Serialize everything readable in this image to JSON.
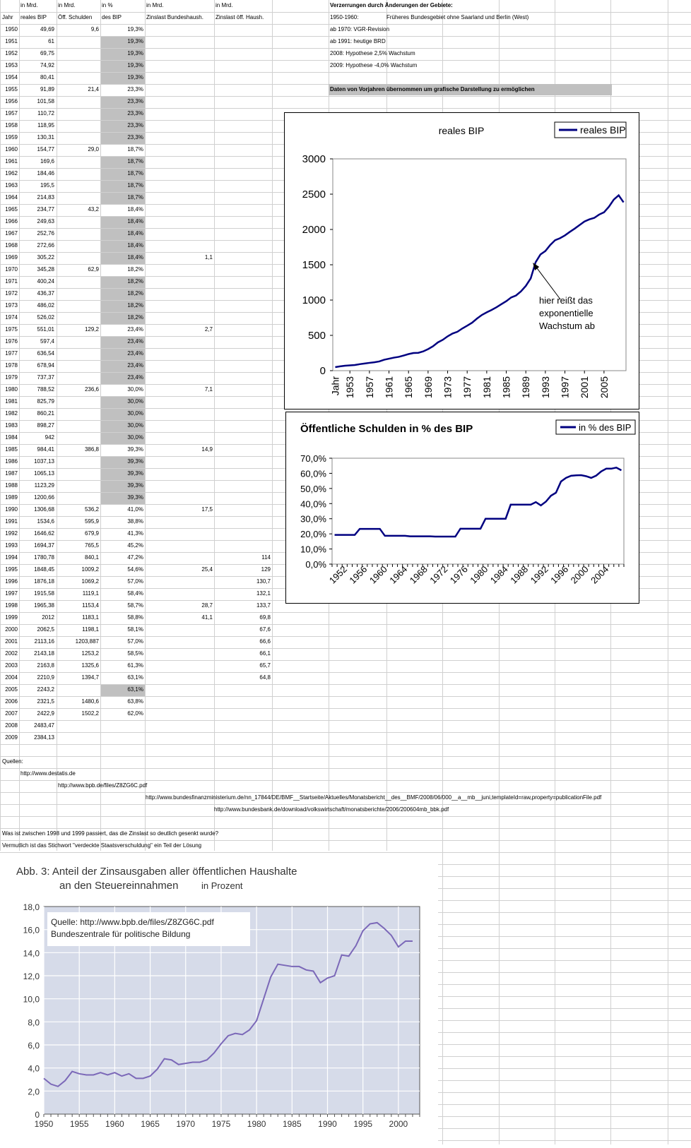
{
  "header_row1": [
    "in Mrd.",
    "in Mrd.",
    "in %",
    "in Mrd.",
    "in Mrd."
  ],
  "header_row2": [
    "Jahr",
    "reales BIP",
    "Öff. Schulden",
    "des BIP",
    "Zinslast Bundeshaush.",
    "Zinslast öff. Haush."
  ],
  "rows": [
    [
      "1950",
      "49,69",
      "9,6",
      "19,3%",
      "",
      ""
    ],
    [
      "1951",
      "61",
      "",
      "19,3%",
      "",
      ""
    ],
    [
      "1952",
      "69,75",
      "",
      "19,3%",
      "",
      ""
    ],
    [
      "1953",
      "74,92",
      "",
      "19,3%",
      "",
      ""
    ],
    [
      "1954",
      "80,41",
      "",
      "19,3%",
      "",
      ""
    ],
    [
      "1955",
      "91,89",
      "21,4",
      "23,3%",
      "",
      ""
    ],
    [
      "1956",
      "101,58",
      "",
      "23,3%",
      "",
      ""
    ],
    [
      "1957",
      "110,72",
      "",
      "23,3%",
      "",
      ""
    ],
    [
      "1958",
      "118,95",
      "",
      "23,3%",
      "",
      ""
    ],
    [
      "1959",
      "130,31",
      "",
      "23,3%",
      "",
      ""
    ],
    [
      "1960",
      "154,77",
      "29,0",
      "18,7%",
      "",
      ""
    ],
    [
      "1961",
      "169,6",
      "",
      "18,7%",
      "",
      ""
    ],
    [
      "1962",
      "184,46",
      "",
      "18,7%",
      "",
      ""
    ],
    [
      "1963",
      "195,5",
      "",
      "18,7%",
      "",
      ""
    ],
    [
      "1964",
      "214,83",
      "",
      "18,7%",
      "",
      ""
    ],
    [
      "1965",
      "234,77",
      "43,2",
      "18,4%",
      "",
      ""
    ],
    [
      "1966",
      "249,63",
      "",
      "18,4%",
      "",
      ""
    ],
    [
      "1967",
      "252,76",
      "",
      "18,4%",
      "",
      ""
    ],
    [
      "1968",
      "272,66",
      "",
      "18,4%",
      "",
      ""
    ],
    [
      "1969",
      "305,22",
      "",
      "18,4%",
      "1,1",
      ""
    ],
    [
      "1970",
      "345,28",
      "62,9",
      "18,2%",
      "",
      ""
    ],
    [
      "1971",
      "400,24",
      "",
      "18,2%",
      "",
      ""
    ],
    [
      "1972",
      "436,37",
      "",
      "18,2%",
      "",
      ""
    ],
    [
      "1973",
      "486,02",
      "",
      "18,2%",
      "",
      ""
    ],
    [
      "1974",
      "526,02",
      "",
      "18,2%",
      "",
      ""
    ],
    [
      "1975",
      "551,01",
      "129,2",
      "23,4%",
      "2,7",
      ""
    ],
    [
      "1976",
      "597,4",
      "",
      "23,4%",
      "",
      ""
    ],
    [
      "1977",
      "636,54",
      "",
      "23,4%",
      "",
      ""
    ],
    [
      "1978",
      "678,94",
      "",
      "23,4%",
      "",
      ""
    ],
    [
      "1979",
      "737,37",
      "",
      "23,4%",
      "",
      ""
    ],
    [
      "1980",
      "788,52",
      "236,6",
      "30,0%",
      "7,1",
      ""
    ],
    [
      "1981",
      "825,79",
      "",
      "30,0%",
      "",
      ""
    ],
    [
      "1982",
      "860,21",
      "",
      "30,0%",
      "",
      ""
    ],
    [
      "1983",
      "898,27",
      "",
      "30,0%",
      "",
      ""
    ],
    [
      "1984",
      "942",
      "",
      "30,0%",
      "",
      ""
    ],
    [
      "1985",
      "984,41",
      "386,8",
      "39,3%",
      "14,9",
      ""
    ],
    [
      "1986",
      "1037,13",
      "",
      "39,3%",
      "",
      ""
    ],
    [
      "1987",
      "1065,13",
      "",
      "39,3%",
      "",
      ""
    ],
    [
      "1988",
      "1123,29",
      "",
      "39,3%",
      "",
      ""
    ],
    [
      "1989",
      "1200,66",
      "",
      "39,3%",
      "",
      ""
    ],
    [
      "1990",
      "1306,68",
      "536,2",
      "41,0%",
      "17,5",
      ""
    ],
    [
      "1991",
      "1534,6",
      "595,9",
      "38,8%",
      "",
      ""
    ],
    [
      "1992",
      "1646,62",
      "679,9",
      "41,3%",
      "",
      ""
    ],
    [
      "1993",
      "1694,37",
      "765,5",
      "45,2%",
      "",
      ""
    ],
    [
      "1994",
      "1780,78",
      "840,1",
      "47,2%",
      "",
      "114"
    ],
    [
      "1995",
      "1848,45",
      "1009,2",
      "54,6%",
      "25,4",
      "129"
    ],
    [
      "1996",
      "1876,18",
      "1069,2",
      "57,0%",
      "",
      "130,7"
    ],
    [
      "1997",
      "1915,58",
      "1119,1",
      "58,4%",
      "",
      "132,1"
    ],
    [
      "1998",
      "1965,38",
      "1153,4",
      "58,7%",
      "28,7",
      "133,7"
    ],
    [
      "1999",
      "2012",
      "1183,1",
      "58,8%",
      "41,1",
      "69,8"
    ],
    [
      "2000",
      "2062,5",
      "1198,1",
      "58,1%",
      "",
      "67,6"
    ],
    [
      "2001",
      "2113,16",
      "1203,887",
      "57,0%",
      "",
      "66,6"
    ],
    [
      "2002",
      "2143,18",
      "1253,2",
      "58,5%",
      "",
      "66,1"
    ],
    [
      "2003",
      "2163,8",
      "1325,6",
      "61,3%",
      "",
      "65,7"
    ],
    [
      "2004",
      "2210,9",
      "1394,7",
      "63,1%",
      "",
      "64,8"
    ],
    [
      "2005",
      "2243,2",
      "",
      "63,1%",
      "",
      ""
    ],
    [
      "2006",
      "2321,5",
      "1480,6",
      "63,8%",
      "",
      ""
    ],
    [
      "2007",
      "2422,9",
      "1502,2",
      "62,0%",
      "",
      ""
    ],
    [
      "2008",
      "2483,47",
      "",
      "",
      "",
      ""
    ],
    [
      "2009",
      "2384,13",
      "",
      "",
      "",
      ""
    ]
  ],
  "gray_rows": [
    1,
    2,
    3,
    4,
    6,
    7,
    8,
    9,
    11,
    12,
    13,
    14,
    16,
    17,
    18,
    19,
    21,
    22,
    23,
    24,
    26,
    27,
    28,
    29,
    31,
    32,
    33,
    34,
    36,
    37,
    38,
    39,
    55
  ],
  "notes": {
    "title": "Verzerrungen durch Änderungen der Gebiete:",
    "n1_label": "1950-1960:",
    "n1_text": "Früheres Bundesgebiet ohne Saarland und Berlin (West)",
    "n2": "ab 1970: VGR-Revision",
    "n3": "ab 1991: heutige BRD",
    "n4": "2008: Hypothese 2,5% Wachstum",
    "n5": "2009: Hypothese -4,0% Wachstum",
    "banner": "Daten von Vorjahren übernommen um grafische Darstellung zu ermöglichen"
  },
  "sources": {
    "label": "Quellen:",
    "s1": "http://www.destatis.de",
    "s2": "http://www.bpb.de/files/Z8ZG6C.pdf",
    "s3": "http://www.bundesfinanzministerium.de/nn_17844/DE/BMF__Startseite/Aktuelles/Monatsbericht__des__BMF/2008/06/000__a__mb__juni,templateId=raw,property=publicationFile.pdf",
    "s4": "http://www.bundesbank.de/download/volkswirtschaft/monatsberichte/2006/200604mb_bbk.pdf"
  },
  "comments": {
    "q": "Was ist zwischen 1998 und 1999 passiert, das die Zinslast so deutlich gesenkt wurde?",
    "a": "Vermutlich ist das Stichwort \"verdeckte Staatsverschuldung\" ein Teil der Lösung"
  },
  "chart_data": [
    {
      "type": "line",
      "title": "reales BIP",
      "legend": "reales BIP",
      "legend_position": "top-right",
      "x_first_label": "Jahr",
      "x_tick_labels": [
        "1953",
        "1957",
        "1961",
        "1965",
        "1969",
        "1973",
        "1977",
        "1981",
        "1985",
        "1989",
        "1993",
        "1997",
        "2001",
        "2005"
      ],
      "y_tick_labels": [
        "0",
        "500",
        "1000",
        "1500",
        "2000",
        "2500",
        "3000"
      ],
      "ylim": [
        0,
        3000
      ],
      "annotation": [
        "hier reißt das",
        "exponentielle",
        "Wachstum ab"
      ],
      "line_color": "#000080",
      "series_source": "column reales BIP, 1950-2009"
    },
    {
      "type": "line",
      "title": "Öffentliche Schulden in % des BIP",
      "legend": "in % des BIP",
      "legend_position": "top-right",
      "x_tick_labels": [
        "1952",
        "1956",
        "1960",
        "1964",
        "1968",
        "1972",
        "1976",
        "1980",
        "1984",
        "1988",
        "1992",
        "1996",
        "2000",
        "2004"
      ],
      "y_tick_labels": [
        "0,0%",
        "10,0%",
        "20,0%",
        "30,0%",
        "40,0%",
        "50,0%",
        "60,0%",
        "70,0%"
      ],
      "ylim": [
        0,
        70
      ],
      "line_color": "#000080",
      "series_source": "column des BIP, 1950-2007"
    },
    {
      "type": "line",
      "title_line1": "Abb. 3:  Anteil der Zinsausgaben aller öffentlichen Haushalte",
      "title_line2": "an den Steuereinnahmen",
      "title_unit": "in Prozent",
      "source_line1": "Quelle:  http://www.bpb.de/files/Z8ZG6C.pdf",
      "source_line2": "Bundeszentrale für politische Bildung",
      "x_tick_labels": [
        "1950",
        "1955",
        "1960",
        "1965",
        "1970",
        "1975",
        "1980",
        "1985",
        "1990",
        "1995",
        "2000"
      ],
      "y_tick_labels": [
        "0",
        "2,0",
        "4,0",
        "6,0",
        "8,0",
        "10,0",
        "12,0",
        "14,0",
        "16,0",
        "18,0"
      ],
      "ylim": [
        0,
        18
      ],
      "xlim": [
        1950,
        2003
      ],
      "line_color": "#7b68b8",
      "plot_background": "#d6dbe9",
      "x": [
        1950,
        1951,
        1952,
        1953,
        1954,
        1955,
        1956,
        1957,
        1958,
        1959,
        1960,
        1961,
        1962,
        1963,
        1964,
        1965,
        1966,
        1967,
        1968,
        1969,
        1970,
        1971,
        1972,
        1973,
        1974,
        1975,
        1976,
        1977,
        1978,
        1979,
        1980,
        1981,
        1982,
        1983,
        1984,
        1985,
        1986,
        1987,
        1988,
        1989,
        1990,
        1991,
        1992,
        1993,
        1994,
        1995,
        1996,
        1997,
        1998,
        1999,
        2000,
        2001,
        2002
      ],
      "values": [
        3.1,
        2.6,
        2.4,
        2.9,
        3.7,
        3.5,
        3.4,
        3.4,
        3.6,
        3.4,
        3.6,
        3.3,
        3.5,
        3.1,
        3.1,
        3.3,
        3.9,
        4.8,
        4.7,
        4.3,
        4.4,
        4.5,
        4.5,
        4.7,
        5.3,
        6.1,
        6.8,
        7.0,
        6.9,
        7.3,
        8.1,
        10.0,
        11.9,
        13.0,
        12.9,
        12.8,
        12.8,
        12.5,
        12.4,
        11.4,
        11.8,
        12.0,
        13.8,
        13.7,
        14.6,
        15.9,
        16.5,
        16.6,
        16.1,
        15.5,
        14.5,
        15.0,
        15.0
      ]
    }
  ]
}
